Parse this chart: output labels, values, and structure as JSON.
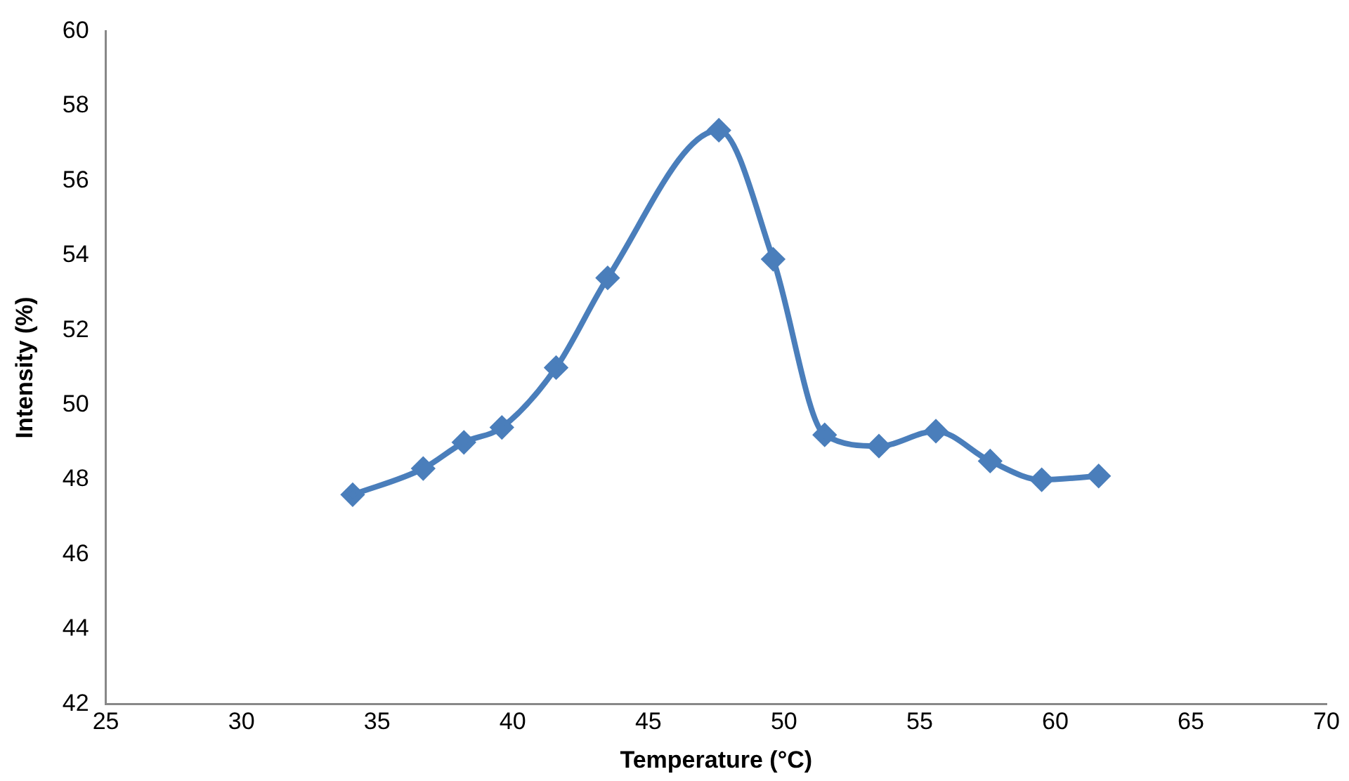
{
  "chart_data": {
    "type": "line",
    "xlabel": "Temperature (°C)",
    "ylabel": "Intensity (%)",
    "x": [
      34.1,
      36.7,
      38.2,
      39.6,
      41.6,
      43.5,
      47.6,
      49.6,
      51.5,
      53.5,
      55.6,
      57.6,
      59.5,
      61.6
    ],
    "series": [
      {
        "color": "#4a7ebb",
        "values": [
          47.6,
          48.3,
          49.0,
          49.4,
          51.0,
          53.4,
          57.35,
          53.9,
          49.2,
          48.9,
          49.3,
          48.5,
          48.0,
          48.1
        ]
      }
    ],
    "xlim": [
      25,
      70
    ],
    "xticks": [
      25,
      30,
      35,
      40,
      45,
      50,
      55,
      60,
      65,
      70
    ],
    "ylim": [
      42,
      60
    ],
    "yticks": [
      42,
      44,
      46,
      48,
      50,
      52,
      54,
      56,
      58,
      60
    ],
    "grid": false,
    "legend": false,
    "marker": "diamond",
    "line_style": "solid"
  }
}
